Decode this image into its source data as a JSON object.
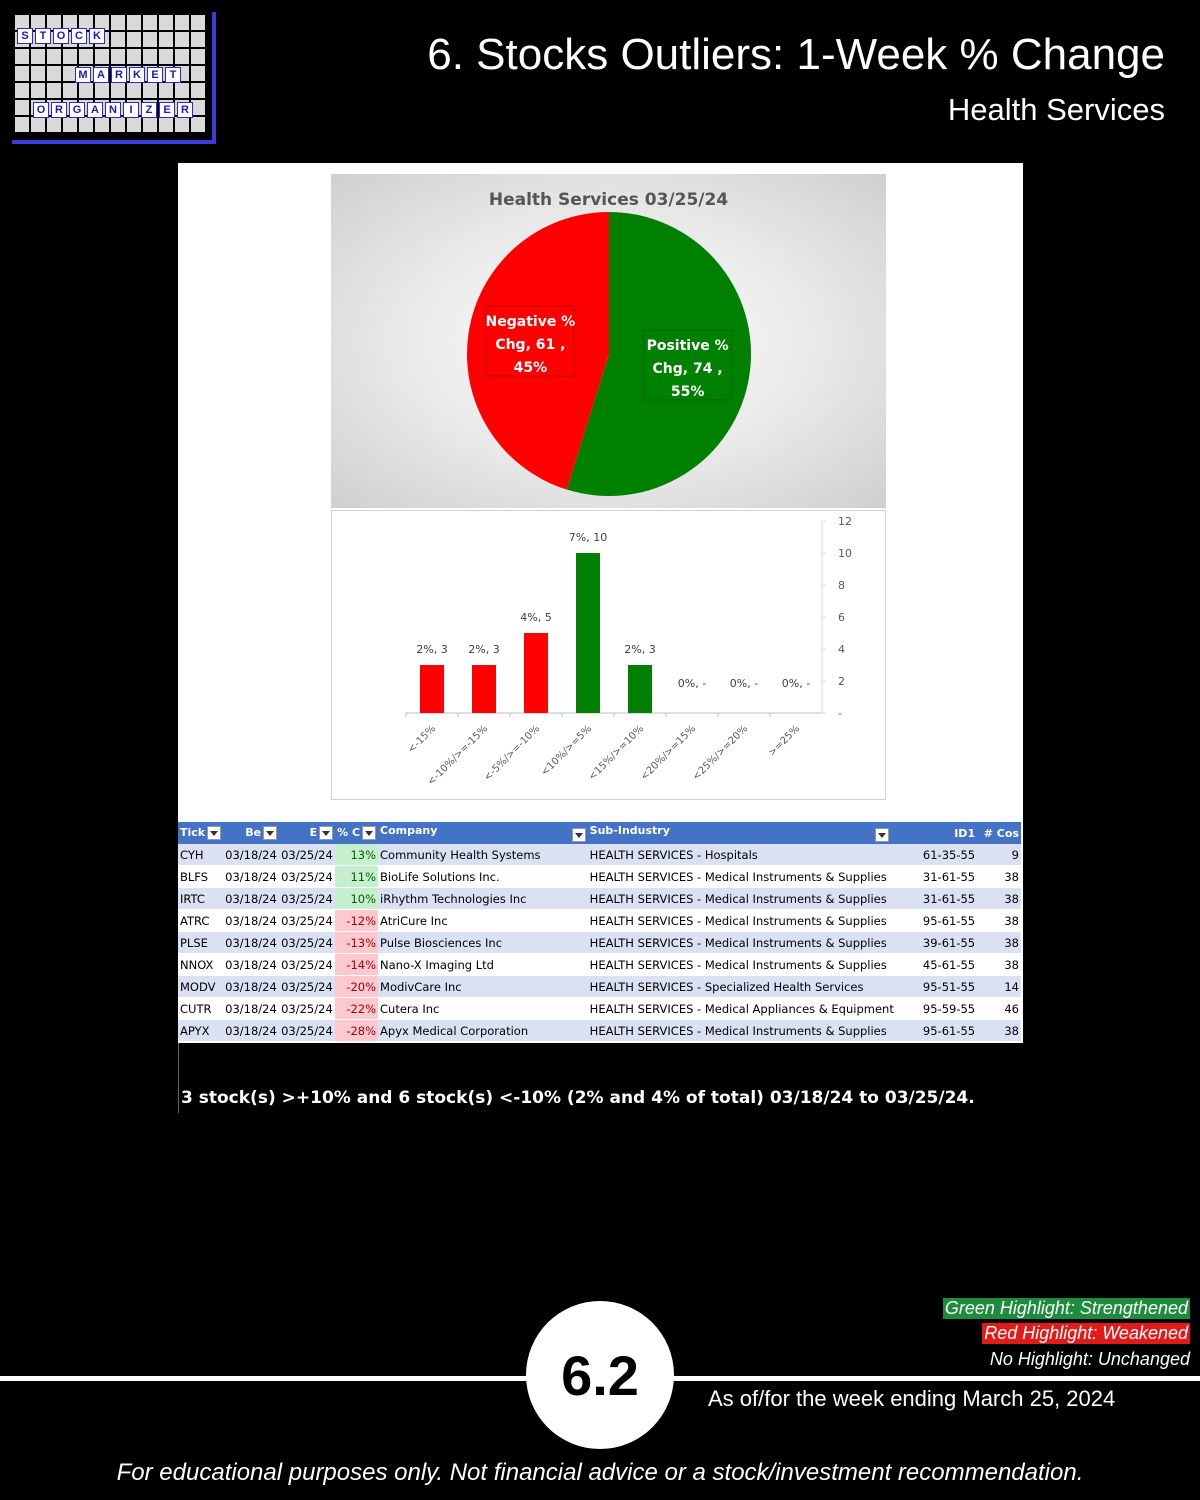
{
  "logo": {
    "row1": [
      "S",
      "T",
      "O",
      "C",
      "K"
    ],
    "row2": [
      "M",
      "A",
      "R",
      "K",
      "E",
      "T"
    ],
    "row3": [
      "O",
      "R",
      "G",
      "A",
      "N",
      "I",
      "Z",
      "E",
      "R"
    ]
  },
  "header": {
    "title": "6. Stocks Outliers: 1-Week % Change",
    "subtitle": "Health Services"
  },
  "chart_data": [
    {
      "type": "pie",
      "title": "Health Services 03/25/24",
      "slices": [
        {
          "label": "Negative % Chg",
          "count": 61,
          "percent": 45,
          "color": "#ff0000"
        },
        {
          "label": "Positive % Chg",
          "count": 74,
          "percent": 55,
          "color": "#008000"
        }
      ]
    },
    {
      "type": "bar",
      "categories": [
        "<-15%",
        "<-10%/>=-15%",
        "<-5%/>=-10%",
        "<10%/>=5%",
        "<15%/>=10%",
        "<20%/>=15%",
        "<25%/>=20%",
        ">=25%"
      ],
      "values": [
        3,
        3,
        5,
        10,
        3,
        0,
        0,
        0
      ],
      "labels": [
        "2%,  3",
        "2%,  3",
        "4%,  5",
        "7%,  10",
        "2%,  3",
        "0%,  -",
        "0%,  -",
        "0%,  -"
      ],
      "colors": [
        "#ff0000",
        "#ff0000",
        "#ff0000",
        "#008000",
        "#008000",
        "#008000",
        "#008000",
        "#008000"
      ],
      "ylim": [
        0,
        12
      ],
      "yticks": [
        "-",
        "2",
        "4",
        "6",
        "8",
        "10",
        "12"
      ],
      "axis_position": "right",
      "grid": false
    }
  ],
  "table": {
    "headers": [
      "Tick",
      "Be",
      "E",
      "% C",
      "Company",
      "Sub-Industry",
      "ID1",
      "# Cos"
    ],
    "rows": [
      [
        "CYH",
        "03/18/24",
        "03/25/24",
        "13%",
        "Community Health Systems",
        "HEALTH SERVICES - Hospitals",
        "61-35-55",
        "9"
      ],
      [
        "BLFS",
        "03/18/24",
        "03/25/24",
        "11%",
        "BioLife Solutions Inc.",
        "HEALTH SERVICES - Medical Instruments & Supplies",
        "31-61-55",
        "38"
      ],
      [
        "IRTC",
        "03/18/24",
        "03/25/24",
        "10%",
        "iRhythm Technologies Inc",
        "HEALTH SERVICES - Medical Instruments & Supplies",
        "31-61-55",
        "38"
      ],
      [
        "ATRC",
        "03/18/24",
        "03/25/24",
        "-12%",
        "AtriCure Inc",
        "HEALTH SERVICES - Medical Instruments & Supplies",
        "95-61-55",
        "38"
      ],
      [
        "PLSE",
        "03/18/24",
        "03/25/24",
        "-13%",
        "Pulse Biosciences Inc",
        "HEALTH SERVICES - Medical Instruments & Supplies",
        "39-61-55",
        "38"
      ],
      [
        "NNOX",
        "03/18/24",
        "03/25/24",
        "-14%",
        "Nano-X Imaging Ltd",
        "HEALTH SERVICES - Medical Instruments & Supplies",
        "45-61-55",
        "38"
      ],
      [
        "MODV",
        "03/18/24",
        "03/25/24",
        "-20%",
        "ModivCare Inc",
        "HEALTH SERVICES - Specialized Health Services",
        "95-51-55",
        "14"
      ],
      [
        "CUTR",
        "03/18/24",
        "03/25/24",
        "-22%",
        "Cutera Inc",
        "HEALTH SERVICES - Medical Appliances & Equipment",
        "95-59-55",
        "46"
      ],
      [
        "APYX",
        "03/18/24",
        "03/25/24",
        "-28%",
        "Apyx Medical Corporation",
        "HEALTH SERVICES - Medical Instruments & Supplies",
        "95-61-55",
        "38"
      ]
    ]
  },
  "summary": "3 stock(s) >+10% and 6 stock(s) <-10% (2% and 4% of total) 03/18/24 to 03/25/24.",
  "legend": {
    "green": "Green Highlight: Strengthened",
    "red": "Red Highlight: Weakened",
    "none": "No Highlight: Unchanged"
  },
  "footer": {
    "badge": "6.2",
    "as_of": "As of/for the week ending March 25, 2024",
    "disclaimer": "For educational purposes only. Not financial advice or a stock/investment recommendation."
  }
}
